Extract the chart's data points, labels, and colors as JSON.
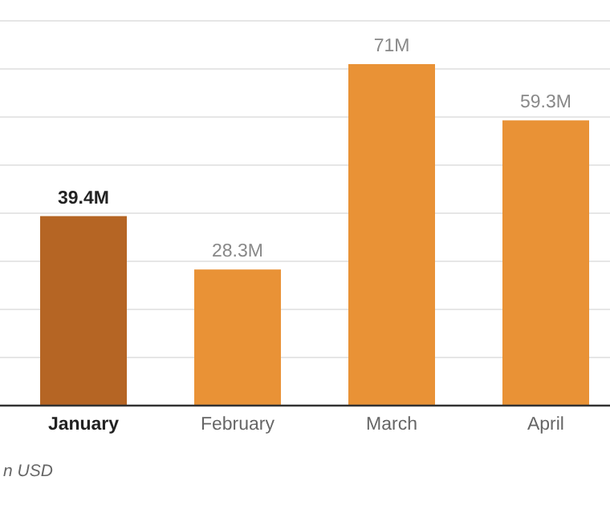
{
  "chart_data": {
    "type": "bar",
    "categories": [
      "January",
      "February",
      "March",
      "April"
    ],
    "values": [
      39.4,
      28.3,
      71,
      59.3
    ],
    "value_labels": [
      "39.4M",
      "28.3M",
      "71M",
      "59.3M"
    ],
    "colors": [
      "#b56524",
      "#e99236",
      "#e99236",
      "#e99236"
    ],
    "ylim": [
      0,
      80
    ],
    "yticks": [
      {
        "value": 0,
        "label": null
      },
      {
        "value": 10,
        "label": null
      },
      {
        "value": 20,
        "label": null
      },
      {
        "value": 30,
        "label": null
      },
      {
        "value": 40,
        "label": null
      },
      {
        "value": 50,
        "label": null
      },
      {
        "value": 60,
        "label": null
      },
      {
        "value": 70,
        "label": null
      },
      {
        "value": 80,
        "label": null
      }
    ],
    "tick_labels": "x",
    "grid": "y",
    "annotations": [
      "n USD"
    ]
  }
}
